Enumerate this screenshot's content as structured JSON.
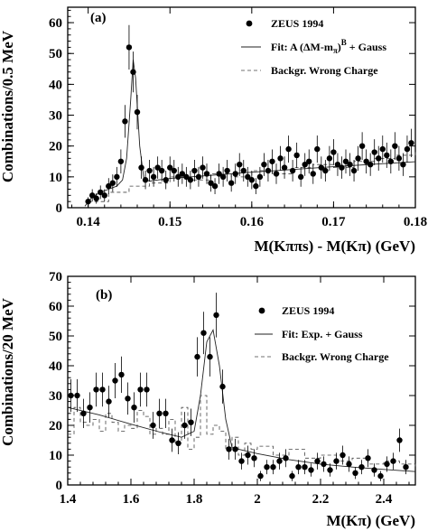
{
  "chart_data": [
    {
      "type": "scatter",
      "panel_label": "(a)",
      "xlabel": "M(Kππs) - M(Kπ)  (GeV)",
      "ylabel": "Combinations/0.5 MeV",
      "xlim": [
        0.1375,
        0.18
      ],
      "ylim": [
        0,
        65
      ],
      "xticks": [
        0.14,
        0.15,
        0.16,
        0.17,
        0.18
      ],
      "xtick_labels": [
        "0.14",
        "0.15",
        "0.16",
        "0.17",
        "0.18"
      ],
      "yticks": [
        0,
        10,
        20,
        30,
        40,
        50,
        60
      ],
      "ytick_labels": [
        "0",
        "10",
        "20",
        "30",
        "40",
        "50",
        "60"
      ],
      "legend": [
        {
          "marker": "dot",
          "label": "ZEUS 1994"
        },
        {
          "marker": "solid",
          "label": "Fit: A (ΔM-mπ)B + Gauss"
        },
        {
          "marker": "dashed",
          "label": "Backgr. Wrong Charge"
        }
      ],
      "legend_position": "top-right",
      "series": [
        {
          "name": "ZEUS 1994",
          "x": [
            0.14,
            0.1405,
            0.141,
            0.1415,
            0.142,
            0.1425,
            0.143,
            0.1435,
            0.144,
            0.1445,
            0.145,
            0.1455,
            0.146,
            0.1465,
            0.147,
            0.1475,
            0.148,
            0.1485,
            0.149,
            0.1495,
            0.15,
            0.1505,
            0.151,
            0.1515,
            0.152,
            0.1525,
            0.153,
            0.1535,
            0.154,
            0.1545,
            0.155,
            0.1555,
            0.156,
            0.1565,
            0.157,
            0.1575,
            0.158,
            0.1585,
            0.159,
            0.1595,
            0.16,
            0.1605,
            0.161,
            0.1615,
            0.162,
            0.1625,
            0.163,
            0.1635,
            0.164,
            0.1645,
            0.165,
            0.1655,
            0.166,
            0.1665,
            0.167,
            0.1675,
            0.168,
            0.1685,
            0.169,
            0.1695,
            0.17,
            0.1705,
            0.171,
            0.1715,
            0.172,
            0.1725,
            0.173,
            0.1735,
            0.174,
            0.1745,
            0.175,
            0.1755,
            0.176,
            0.1765,
            0.177,
            0.1775,
            0.178,
            0.1785,
            0.179,
            0.1795
          ],
          "y": [
            2,
            4,
            3,
            5,
            4,
            7,
            8,
            10,
            15,
            28,
            52,
            44,
            31,
            13,
            9,
            12,
            10,
            13,
            12,
            9,
            13,
            12,
            10,
            11,
            10,
            9,
            12,
            10,
            13,
            11,
            8,
            7,
            11,
            10,
            12,
            8,
            11,
            14,
            12,
            10,
            9,
            7,
            10,
            14,
            12,
            15,
            11,
            16,
            13,
            19,
            12,
            17,
            10,
            14,
            15,
            11,
            19,
            13,
            12,
            16,
            18,
            14,
            13,
            15,
            14,
            12,
            16,
            20,
            15,
            14,
            18,
            16,
            19,
            17,
            15,
            20,
            16,
            14,
            19,
            21
          ],
          "yerr": [
            1.4,
            2,
            1.7,
            2.2,
            2,
            2.6,
            2.8,
            3.2,
            3.9,
            5.3,
            7.2,
            6.6,
            5.6,
            3.6,
            3,
            3.5,
            3.2,
            3.6,
            3.5,
            3,
            3.6,
            3.5,
            3.2,
            3.3,
            3.2,
            3,
            3.5,
            3.2,
            3.6,
            3.3,
            2.8,
            2.6,
            3.3,
            3.2,
            3.5,
            2.8,
            3.3,
            3.7,
            3.5,
            3.2,
            3,
            2.6,
            3.2,
            3.7,
            3.5,
            3.9,
            3.3,
            4,
            3.6,
            4.4,
            3.5,
            4.1,
            3.2,
            3.7,
            3.9,
            3.3,
            4.4,
            3.6,
            3.5,
            4,
            4.2,
            3.7,
            3.6,
            3.9,
            3.7,
            3.5,
            4,
            4.5,
            3.9,
            3.7,
            4.2,
            4,
            4.4,
            4.1,
            3.9,
            4.5,
            4,
            3.7,
            4.4,
            4.6
          ]
        },
        {
          "name": "Fit: A (ΔM-mπ)B + Gauss",
          "x": [
            0.1396,
            0.1405,
            0.1415,
            0.1425,
            0.1435,
            0.1442,
            0.1447,
            0.1452,
            0.1455,
            0.1458,
            0.1463,
            0.1468,
            0.1475,
            0.1485,
            0.15,
            0.155,
            0.16,
            0.165,
            0.17,
            0.175,
            0.18
          ],
          "y": [
            0.5,
            3.5,
            5,
            6,
            7,
            9,
            16,
            35,
            48,
            42,
            20,
            9.5,
            8.6,
            9,
            9.5,
            10.5,
            11.5,
            12.4,
            13.3,
            14.1,
            14.9
          ]
        },
        {
          "name": "Backgr. Wrong Charge",
          "x": [
            0.14,
            0.1425,
            0.145,
            0.1475,
            0.15,
            0.1525,
            0.155,
            0.1575,
            0.16,
            0.1625,
            0.165,
            0.1675,
            0.17,
            0.1725,
            0.175,
            0.1775,
            0.18
          ],
          "y": [
            2,
            5,
            7,
            8,
            10,
            9,
            11,
            10,
            12,
            11,
            13,
            14,
            13,
            15,
            16,
            17,
            18
          ]
        }
      ]
    },
    {
      "type": "scatter",
      "panel_label": "(b)",
      "xlabel": "M(Kπ)  (GeV)",
      "ylabel": "Combinations/20  MeV",
      "xlim": [
        1.4,
        2.5
      ],
      "ylim": [
        0,
        70
      ],
      "xticks": [
        1.4,
        1.6,
        1.8,
        2.0,
        2.2,
        2.4
      ],
      "xtick_labels": [
        "1.4",
        "1.6",
        "1.8",
        "2",
        "2.2",
        "2.4"
      ],
      "yticks": [
        0,
        10,
        20,
        30,
        40,
        50,
        60,
        70
      ],
      "ytick_labels": [
        "0",
        "10",
        "20",
        "30",
        "40",
        "50",
        "60",
        "70"
      ],
      "legend": [
        {
          "marker": "dot",
          "label": "ZEUS 1994"
        },
        {
          "marker": "solid",
          "label": "Fit: Exp. + Gauss"
        },
        {
          "marker": "dashed",
          "label": "Backgr. Wrong Charge"
        }
      ],
      "legend_position": "top-right",
      "series": [
        {
          "name": "ZEUS 1994",
          "x": [
            1.41,
            1.43,
            1.45,
            1.47,
            1.49,
            1.51,
            1.53,
            1.55,
            1.57,
            1.59,
            1.61,
            1.63,
            1.65,
            1.67,
            1.69,
            1.71,
            1.73,
            1.75,
            1.77,
            1.79,
            1.81,
            1.83,
            1.85,
            1.87,
            1.89,
            1.91,
            1.93,
            1.95,
            1.97,
            1.99,
            2.01,
            2.03,
            2.05,
            2.07,
            2.09,
            2.11,
            2.13,
            2.15,
            2.17,
            2.19,
            2.21,
            2.23,
            2.25,
            2.27,
            2.29,
            2.31,
            2.33,
            2.35,
            2.37,
            2.39,
            2.41,
            2.43,
            2.45,
            2.47
          ],
          "y": [
            30,
            30,
            24,
            26,
            32,
            32,
            28,
            35,
            37,
            29,
            26,
            32,
            32,
            20,
            24,
            24,
            15,
            14,
            20,
            21,
            43,
            51,
            43,
            57,
            33,
            12,
            12,
            8,
            10,
            9,
            3,
            6,
            6,
            8,
            9,
            3,
            6,
            6,
            5,
            8,
            7,
            5,
            8,
            10,
            7,
            4,
            6,
            9,
            5,
            3,
            7,
            8,
            15,
            6
          ],
          "yerr": [
            5.5,
            5.5,
            4.9,
            5.1,
            5.7,
            5.7,
            5.3,
            5.9,
            6.1,
            5.4,
            5.1,
            5.7,
            5.7,
            4.5,
            4.9,
            4.9,
            3.9,
            3.7,
            4.5,
            4.6,
            6.6,
            7.1,
            6.6,
            7.5,
            5.7,
            3.5,
            3.5,
            2.8,
            3.2,
            3,
            1.7,
            2.4,
            2.4,
            2.8,
            3,
            1.7,
            2.4,
            2.4,
            2.2,
            2.8,
            2.6,
            2.2,
            2.8,
            3.2,
            2.6,
            2,
            2.4,
            3,
            2.2,
            1.7,
            2.6,
            2.8,
            3.9,
            2.4
          ]
        },
        {
          "name": "Fit: Exp. + Gauss",
          "x": [
            1.4,
            1.5,
            1.6,
            1.7,
            1.76,
            1.8,
            1.82,
            1.84,
            1.86,
            1.88,
            1.9,
            1.92,
            1.96,
            2.0,
            2.1,
            2.2,
            2.3,
            2.4,
            2.5
          ],
          "y": [
            26,
            23.5,
            20.4,
            17.5,
            16,
            18,
            30,
            48,
            52,
            40,
            22,
            12.5,
            11.5,
            10.5,
            8.5,
            7,
            6,
            5.2,
            4.5
          ]
        },
        {
          "name": "Backgr. Wrong Charge",
          "x": [
            1.4,
            1.42,
            1.44,
            1.46,
            1.48,
            1.5,
            1.52,
            1.54,
            1.56,
            1.58,
            1.6,
            1.62,
            1.64,
            1.66,
            1.68,
            1.7,
            1.72,
            1.74,
            1.76,
            1.78,
            1.8,
            1.82,
            1.84,
            1.86,
            1.88,
            1.9,
            1.92,
            1.94,
            1.96,
            1.98,
            2.0,
            2.05,
            2.1,
            2.15,
            2.2,
            2.25,
            2.3,
            2.35,
            2.4,
            2.45,
            2.5
          ],
          "y": [
            17,
            26,
            21,
            20,
            22,
            18,
            24,
            21,
            18,
            20,
            19,
            25,
            23,
            17,
            19,
            17,
            22,
            14,
            26,
            12,
            16,
            30,
            17,
            20,
            18,
            12,
            16,
            10,
            14,
            12,
            13,
            10,
            12,
            9,
            10,
            8,
            9,
            7,
            8,
            7,
            6
          ]
        }
      ]
    }
  ]
}
